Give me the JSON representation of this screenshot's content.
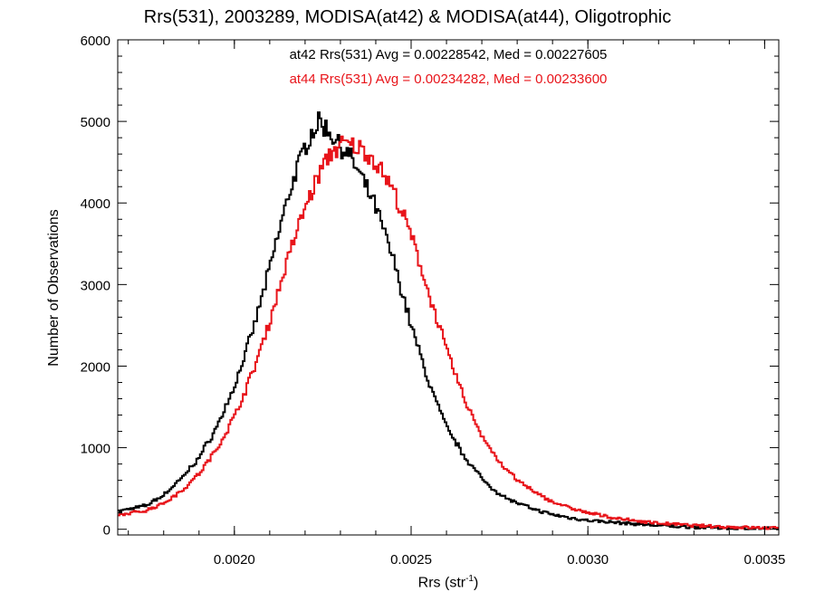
{
  "title": "Rrs(531), 2003289, MODISA(at42) & MODISA(at44), Oligotrophic",
  "annotations": [
    {
      "text": "at42 Rrs(531) Avg = 0.00228542, Med = 0.00227605",
      "color": "#000000"
    },
    {
      "text": "at44 Rrs(531) Avg = 0.00234282, Med = 0.00233600",
      "color": "#e8141a"
    }
  ],
  "axes": {
    "xlabel_main": "Rrs (str",
    "xlabel_sup": "-1",
    "xlabel_tail": ")",
    "ylabel": "Number of Observations"
  },
  "chart_data": {
    "type": "histogram-step",
    "xlim": [
      0.00167,
      0.00354
    ],
    "ylim": [
      -70,
      6000
    ],
    "x_ticks": [
      {
        "v": 0.002,
        "label": "0.0020"
      },
      {
        "v": 0.0025,
        "label": "0.0025"
      },
      {
        "v": 0.003,
        "label": "0.0030"
      },
      {
        "v": 0.0035,
        "label": "0.0035"
      }
    ],
    "y_ticks": [
      {
        "v": 0,
        "label": "0"
      },
      {
        "v": 1000,
        "label": "1000"
      },
      {
        "v": 2000,
        "label": "2000"
      },
      {
        "v": 3000,
        "label": "3000"
      },
      {
        "v": 4000,
        "label": "4000"
      },
      {
        "v": 5000,
        "label": "5000"
      },
      {
        "v": 6000,
        "label": "6000"
      }
    ],
    "series": [
      {
        "color": "#000000",
        "points": [
          [
            0.00167,
            220
          ],
          [
            0.00175,
            290
          ],
          [
            0.0018,
            420
          ],
          [
            0.00185,
            620
          ],
          [
            0.0019,
            880
          ],
          [
            0.00195,
            1250
          ],
          [
            0.002,
            1750
          ],
          [
            0.00205,
            2400
          ],
          [
            0.0021,
            3200
          ],
          [
            0.00215,
            4050
          ],
          [
            0.00218,
            4450
          ],
          [
            0.00221,
            4800
          ],
          [
            0.00224,
            5000
          ],
          [
            0.00227,
            4870
          ],
          [
            0.0023,
            4700
          ],
          [
            0.00233,
            4550
          ],
          [
            0.00236,
            4300
          ],
          [
            0.0024,
            3950
          ],
          [
            0.00245,
            3300
          ],
          [
            0.0025,
            2500
          ],
          [
            0.00255,
            1800
          ],
          [
            0.0026,
            1250
          ],
          [
            0.00265,
            900
          ],
          [
            0.0027,
            620
          ],
          [
            0.00275,
            430
          ],
          [
            0.0028,
            320
          ],
          [
            0.00285,
            240
          ],
          [
            0.0029,
            180
          ],
          [
            0.00295,
            140
          ],
          [
            0.003,
            110
          ],
          [
            0.0031,
            75
          ],
          [
            0.0032,
            45
          ],
          [
            0.0033,
            25
          ],
          [
            0.0034,
            15
          ],
          [
            0.00354,
            8
          ]
        ]
      },
      {
        "color": "#e8141a",
        "points": [
          [
            0.00167,
            170
          ],
          [
            0.00175,
            230
          ],
          [
            0.0018,
            320
          ],
          [
            0.00185,
            470
          ],
          [
            0.0019,
            680
          ],
          [
            0.00195,
            980
          ],
          [
            0.002,
            1380
          ],
          [
            0.00205,
            1900
          ],
          [
            0.0021,
            2550
          ],
          [
            0.00215,
            3300
          ],
          [
            0.0022,
            3950
          ],
          [
            0.00225,
            4450
          ],
          [
            0.00228,
            4650
          ],
          [
            0.00231,
            4720
          ],
          [
            0.00235,
            4680
          ],
          [
            0.00238,
            4600
          ],
          [
            0.00241,
            4450
          ],
          [
            0.00245,
            4150
          ],
          [
            0.0025,
            3600
          ],
          [
            0.00255,
            2900
          ],
          [
            0.0026,
            2200
          ],
          [
            0.00265,
            1600
          ],
          [
            0.0027,
            1150
          ],
          [
            0.00275,
            820
          ],
          [
            0.0028,
            600
          ],
          [
            0.00285,
            450
          ],
          [
            0.0029,
            340
          ],
          [
            0.00295,
            260
          ],
          [
            0.003,
            200
          ],
          [
            0.00305,
            160
          ],
          [
            0.0031,
            120
          ],
          [
            0.0032,
            75
          ],
          [
            0.0033,
            45
          ],
          [
            0.0034,
            28
          ],
          [
            0.00354,
            12
          ]
        ]
      }
    ],
    "bins": 370
  }
}
